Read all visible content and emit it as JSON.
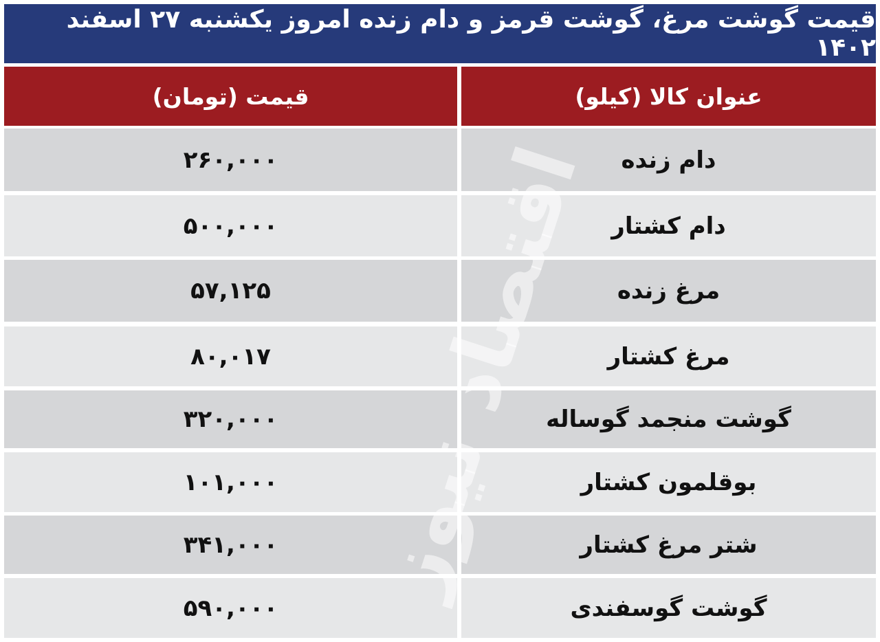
{
  "title": "قیمت گوشت مرغ، گوشت قرمز و دام زنده امروز یکشنبه ۲۷ اسفند ۱۴۰۲",
  "headers": {
    "item": "عنوان کالا (کیلو)",
    "price": "قیمت (تومان)"
  },
  "rows": [
    {
      "item": "دام زنده",
      "price": "۲۶۰,۰۰۰"
    },
    {
      "item": "دام کشتار",
      "price": "۵۰۰,۰۰۰"
    },
    {
      "item": "مرغ زنده",
      "price": "۵۷,۱۲۵"
    },
    {
      "item": "مرغ کشتار",
      "price": "۸۰,۰۱۷"
    },
    {
      "item": "گوشت منجمد گوساله",
      "price": "۳۲۰,۰۰۰"
    },
    {
      "item": "بوقلمون کشتار",
      "price": "۱۰۱,۰۰۰"
    },
    {
      "item": "شتر مرغ کشتار",
      "price": "۳۴۱,۰۰۰"
    },
    {
      "item": "گوشت گوسفندی",
      "price": "۵۹۰,۰۰۰"
    }
  ],
  "watermark": "اقتصاد نیوز",
  "colors": {
    "title_bg": "#263a7a",
    "header_bg": "#9c1c21",
    "row_dark": "#d5d6d8",
    "row_light": "#e6e7e8"
  }
}
